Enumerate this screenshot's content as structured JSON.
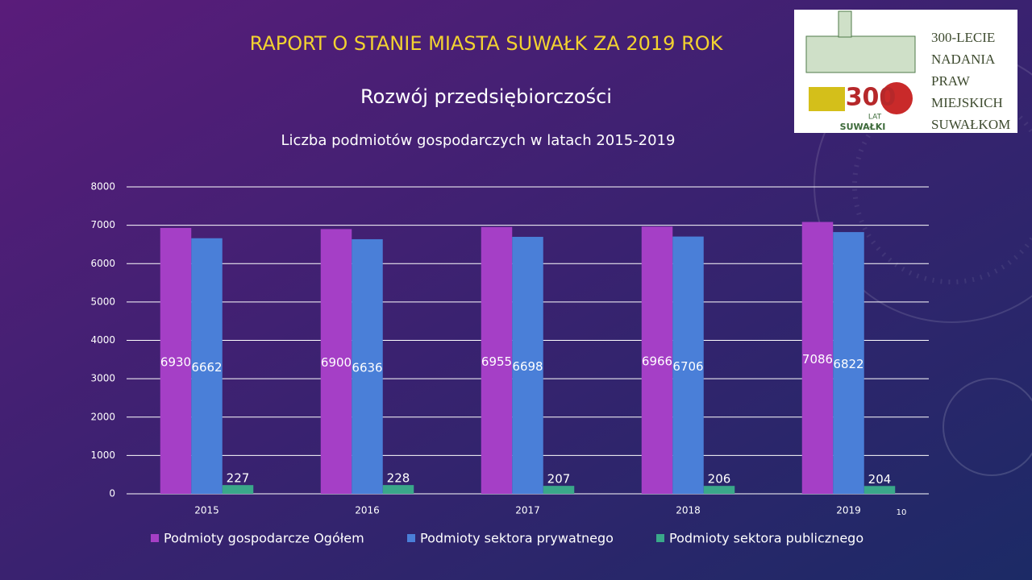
{
  "slide": {
    "title": "RAPORT O STANIE MIASTA SUWAŁK ZA 2019 ROK",
    "subtitle": "Rozwój przedsiębiorczości",
    "page_number": "10"
  },
  "logo": {
    "lines": [
      "300-LECIE",
      "NADANIA",
      "PRAW",
      "MIEJSKICH",
      "SUWAŁKOM"
    ],
    "emblem": "300",
    "emblem_sub": "LAT",
    "city": "SUWAŁKI"
  },
  "chart_data": {
    "type": "bar",
    "title": "Liczba podmiotów gospodarczych w latach 2015-2019",
    "categories": [
      "2015",
      "2016",
      "2017",
      "2018",
      "2019"
    ],
    "series": [
      {
        "name": "Podmioty gospodarcze Ogółem",
        "color": "#a53fc6",
        "values": [
          6930,
          6900,
          6955,
          6966,
          7086
        ]
      },
      {
        "name": "Podmioty sektora prywatnego",
        "color": "#4a7fd8",
        "values": [
          6662,
          6636,
          6698,
          6706,
          6822
        ]
      },
      {
        "name": "Podmioty sektora publicznego",
        "color": "#3aa88a",
        "values": [
          227,
          228,
          207,
          206,
          204
        ]
      }
    ],
    "ylim": [
      0,
      8000
    ],
    "yticks": [
      0,
      1000,
      2000,
      3000,
      4000,
      5000,
      6000,
      7000,
      8000
    ],
    "grid": true,
    "legend": "bottom"
  }
}
